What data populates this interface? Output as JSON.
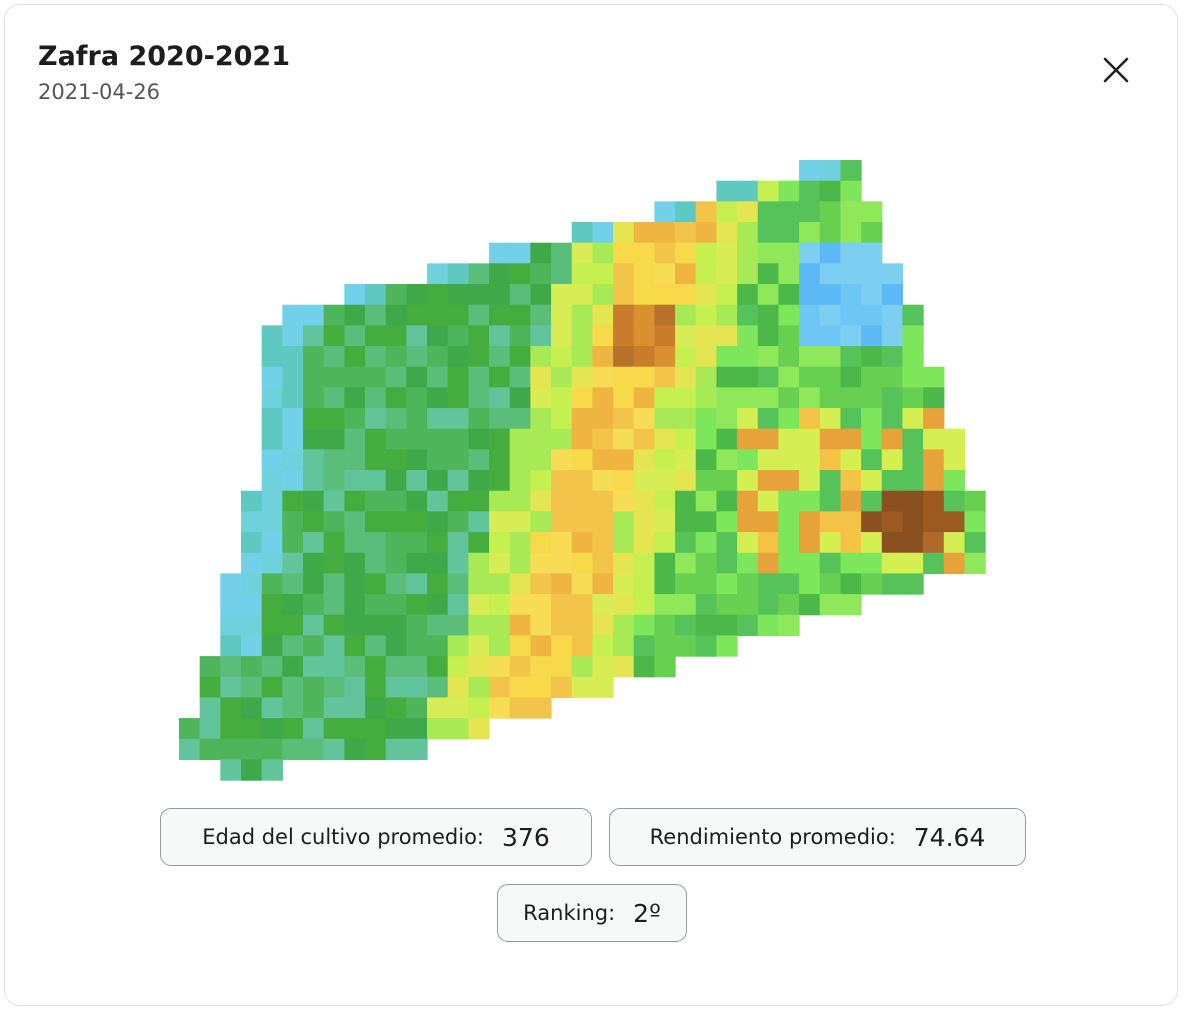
{
  "header": {
    "title": "Zafra 2020-2021",
    "date": "2021-04-26"
  },
  "stats": [
    {
      "label": "Edad del cultivo promedio:",
      "value": "376"
    },
    {
      "label": "Rendimiento promedio:",
      "value": "74.64"
    },
    {
      "label": "Ranking:",
      "value": "2º"
    }
  ]
}
